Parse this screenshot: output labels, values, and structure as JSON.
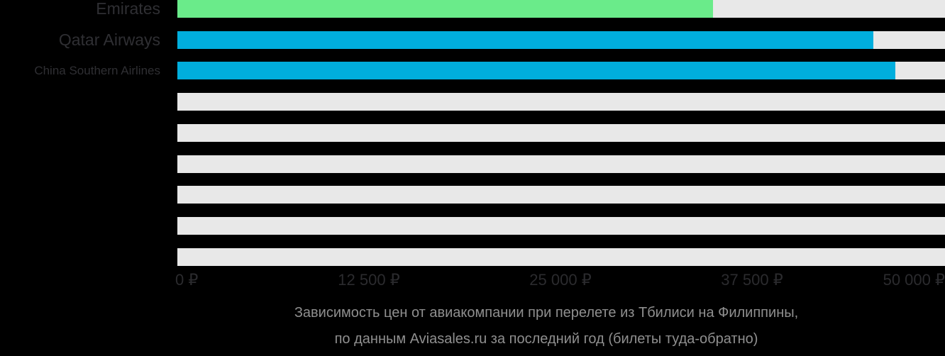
{
  "colors": {
    "background": "#000000",
    "bar_green": "#6aeb8a",
    "bar_blue": "#00aedd",
    "bar_track": "#e8e8e8",
    "category_label_text": "#2f2f33",
    "axis_label_text": "#2b2b2e",
    "caption_text": "#8f8f8f"
  },
  "chart_data": {
    "type": "bar",
    "orientation": "horizontal",
    "title": "Зависимость цен от авиакомпании при перелете из Тбилиси на Филиппины, по данным Aviasales.ru за последний год (билеты туда-обратно)",
    "categories": [
      "Emirates",
      "Qatar Airways",
      "China Southern Airlines",
      "",
      "",
      "",
      "",
      "",
      ""
    ],
    "values": [
      34950,
      45400,
      46850,
      null,
      null,
      null,
      null,
      null,
      null
    ],
    "bar_colors": [
      "#6aeb8a",
      "#00aedd",
      "#00aedd",
      null,
      null,
      null,
      null,
      null,
      null
    ],
    "xlabel": "",
    "ylabel": "",
    "xlim": [
      0,
      50000
    ],
    "x_ticks": [
      {
        "value": 0,
        "label": "0 ₽"
      },
      {
        "value": 12500,
        "label": "12 500 ₽"
      },
      {
        "value": 25000,
        "label": "25 000 ₽"
      },
      {
        "value": 37500,
        "label": "37 500 ₽"
      },
      {
        "value": 50000,
        "label": "50 000 ₽"
      }
    ],
    "grid": false,
    "legend": "none",
    "caption": {
      "line1": "Зависимость цен от авиакомпании при перелете из Тбилиси на Филиппины,",
      "line2": "по данным Aviasales.ru за последний год (билеты туда-обратно)"
    }
  }
}
